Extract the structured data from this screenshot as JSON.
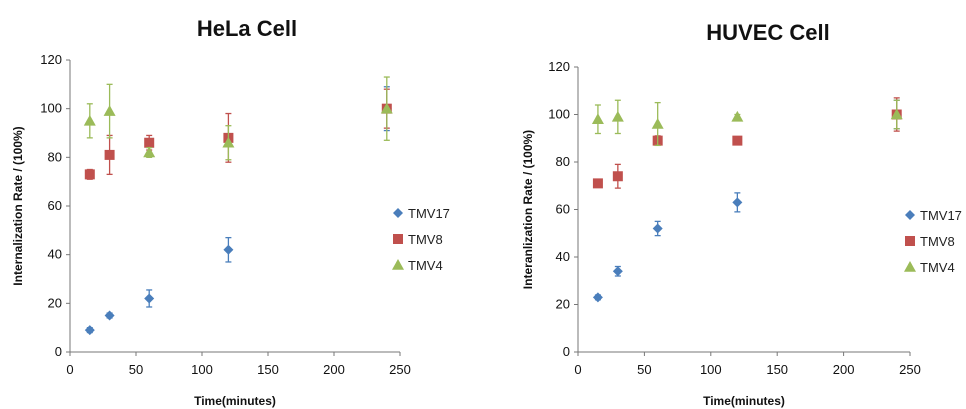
{
  "chart_data": [
    {
      "type": "scatter",
      "title": "HeLa Cell",
      "xlabel": "Time(minutes)",
      "ylabel": "Internalization Rate / (100%)",
      "xlim": [
        0,
        250
      ],
      "ylim": [
        0,
        120
      ],
      "xticks": [
        0,
        50,
        100,
        150,
        200,
        250
      ],
      "yticks": [
        0,
        20,
        40,
        60,
        80,
        100,
        120
      ],
      "grid": false,
      "legend_position": "right",
      "series": [
        {
          "name": "TMV17",
          "color": "#4a7ebb",
          "marker": "diamond",
          "x": [
            15,
            30,
            60,
            120,
            240
          ],
          "y": [
            9,
            15,
            22,
            42,
            100
          ],
          "err": [
            1,
            1,
            3.5,
            5,
            9
          ]
        },
        {
          "name": "TMV8",
          "color": "#c0504d",
          "marker": "square",
          "x": [
            15,
            30,
            60,
            120,
            240
          ],
          "y": [
            73,
            81,
            86,
            88,
            100
          ],
          "err": [
            2,
            8,
            3,
            10,
            8
          ]
        },
        {
          "name": "TMV4",
          "color": "#9bbb59",
          "marker": "triangle",
          "x": [
            15,
            30,
            60,
            120,
            240
          ],
          "y": [
            95,
            99,
            82,
            86,
            100
          ],
          "err": [
            7,
            11,
            2,
            7,
            13
          ]
        }
      ]
    },
    {
      "type": "scatter",
      "title": "HUVEC Cell",
      "xlabel": "Time(minutes)",
      "ylabel": "Interanlization Rate / (100%)",
      "xlim": [
        0,
        250
      ],
      "ylim": [
        0,
        120
      ],
      "xticks": [
        0,
        50,
        100,
        150,
        200,
        250
      ],
      "yticks": [
        0,
        20,
        40,
        60,
        80,
        100,
        120
      ],
      "grid": false,
      "legend_position": "right",
      "series": [
        {
          "name": "TMV17",
          "color": "#4a7ebb",
          "marker": "diamond",
          "x": [
            15,
            30,
            60,
            120,
            240
          ],
          "y": [
            23,
            34,
            52,
            63,
            100
          ],
          "err": [
            1,
            2,
            3,
            4,
            6
          ]
        },
        {
          "name": "TMV8",
          "color": "#c0504d",
          "marker": "square",
          "x": [
            15,
            30,
            60,
            120,
            240
          ],
          "y": [
            71,
            74,
            89,
            89,
            100
          ],
          "err": [
            1,
            5,
            2,
            1,
            7
          ]
        },
        {
          "name": "TMV4",
          "color": "#9bbb59",
          "marker": "triangle",
          "x": [
            15,
            30,
            60,
            120,
            240
          ],
          "y": [
            98,
            99,
            96,
            99,
            100
          ],
          "err": [
            6,
            7,
            9,
            1,
            6
          ]
        }
      ]
    }
  ]
}
